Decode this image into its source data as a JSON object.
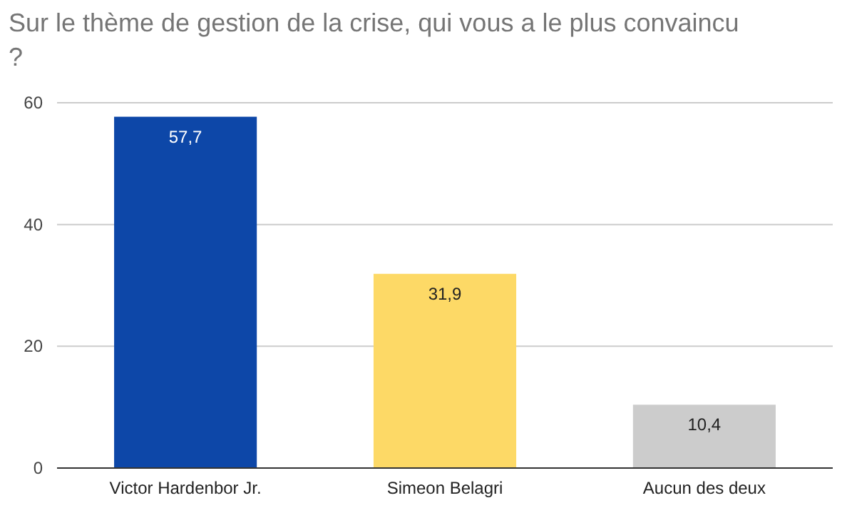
{
  "chart_data": {
    "type": "bar",
    "title": "Sur le thème de gestion de la crise, qui vous a le plus convaincu ?",
    "categories": [
      "Victor Hardenbor Jr.",
      "Simeon Belagri",
      "Aucun des deux"
    ],
    "values": [
      57.7,
      31.9,
      10.4
    ],
    "colors": [
      "#0d47a8",
      "#fdd966",
      "#cccccc"
    ],
    "value_labels": [
      "57,7",
      "31,9",
      "10,4"
    ],
    "ylim": [
      0,
      60
    ],
    "yticks": [
      0,
      20,
      40,
      60
    ],
    "grid": "y"
  }
}
